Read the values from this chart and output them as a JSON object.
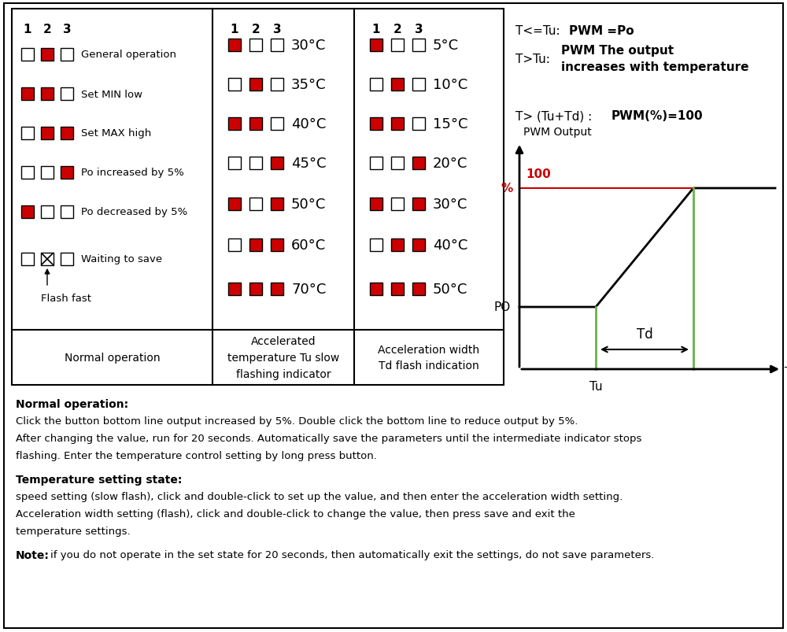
{
  "bg_color": "#ffffff",
  "red_color": "#cc0000",
  "green_color": "#6ab04c",
  "col1_modes": [
    {
      "squares": [
        0,
        1,
        0
      ],
      "label": "General operation"
    },
    {
      "squares": [
        1,
        1,
        0
      ],
      "label": "Set MIN low"
    },
    {
      "squares": [
        0,
        1,
        1
      ],
      "label": "Set MAX high"
    },
    {
      "squares": [
        0,
        0,
        1
      ],
      "label": "Po increased by 5%"
    },
    {
      "squares": [
        1,
        0,
        0
      ],
      "label": "Po decreased by 5%"
    },
    {
      "squares": [
        0,
        2,
        0
      ],
      "label": "Waiting to save"
    }
  ],
  "col2_temps": [
    {
      "squares": [
        1,
        0,
        0
      ],
      "temp": "30°C"
    },
    {
      "squares": [
        0,
        1,
        0
      ],
      "temp": "35°C"
    },
    {
      "squares": [
        1,
        1,
        0
      ],
      "temp": "40°C"
    },
    {
      "squares": [
        0,
        0,
        1
      ],
      "temp": "45°C"
    },
    {
      "squares": [
        1,
        0,
        1
      ],
      "temp": "50°C"
    },
    {
      "squares": [
        0,
        1,
        1
      ],
      "temp": "60°C"
    },
    {
      "squares": [
        1,
        1,
        1
      ],
      "temp": "70°C"
    }
  ],
  "col3_temps": [
    {
      "squares": [
        1,
        0,
        0
      ],
      "temp": "5°C"
    },
    {
      "squares": [
        0,
        1,
        0
      ],
      "temp": "10°C"
    },
    {
      "squares": [
        1,
        1,
        0
      ],
      "temp": "15°C"
    },
    {
      "squares": [
        0,
        0,
        1
      ],
      "temp": "20°C"
    },
    {
      "squares": [
        1,
        0,
        1
      ],
      "temp": "30°C"
    },
    {
      "squares": [
        0,
        1,
        1
      ],
      "temp": "40°C"
    },
    {
      "squares": [
        1,
        1,
        1
      ],
      "temp": "50°C"
    }
  ],
  "col1_footer": "Normal operation",
  "col2_footer": "Accelerated\ntemperature Tu slow\nflashing indicator",
  "col3_footer": "Acceleration width\nTd flash indication",
  "formula1_plain": "T<=Tu: ",
  "formula1_bold": "PWM =Po",
  "formula2_plain": "T>Tu: ",
  "formula2_bold": "PWM The output\nincreases with temperature",
  "formula3_plain": "T> (Tu+Td) : ",
  "formula3_bold": "PWM(%)=100",
  "pwm_label": "PWM Output",
  "po_label": "PO",
  "pct_label": "%",
  "hundred_label": "100",
  "td_label": "Td",
  "tu_label": "Tu",
  "temp_label": "Temperature T",
  "normal_op_title": "Normal operation:",
  "normal_op_text1": "Click the button bottom line output increased by 5%. Double click the bottom line to reduce output by 5%.",
  "normal_op_text2a": "After changing the value, run for 20 seconds. Automatically save the parameters until the intermediate indicator stops",
  "normal_op_text2b": "flashing. Enter the temperature control setting by long press button.",
  "temp_state_title": "Temperature setting state:",
  "temp_state_text1": "speed setting (slow flash), click and double-click to set up the value, and then enter the acceleration width setting.",
  "temp_state_text2a": "Acceleration width setting (flash), click and double-click to change the value, then press save and exit the",
  "temp_state_text2b": "temperature settings.",
  "note_title": "Note:",
  "note_text": "if you do not operate in the set state for 20 seconds, then automatically exit the settings, do not save parameters."
}
